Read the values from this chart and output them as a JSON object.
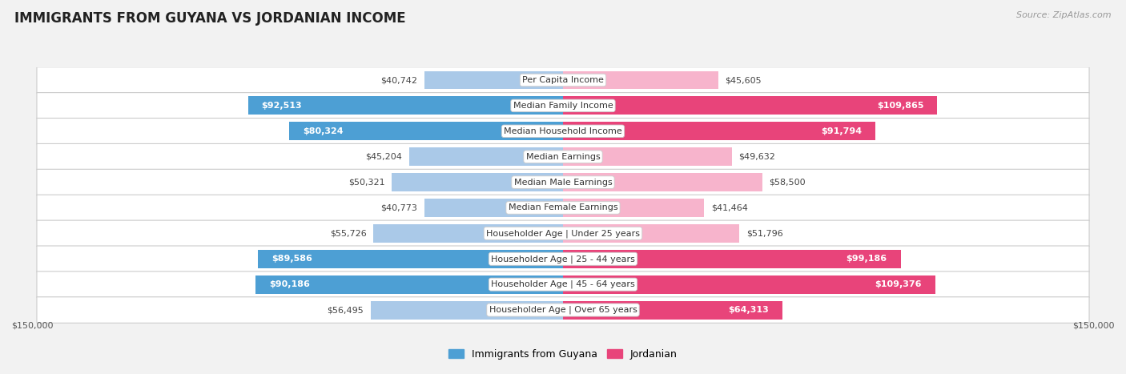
{
  "title": "IMMIGRANTS FROM GUYANA VS JORDANIAN INCOME",
  "source": "Source: ZipAtlas.com",
  "categories": [
    "Per Capita Income",
    "Median Family Income",
    "Median Household Income",
    "Median Earnings",
    "Median Male Earnings",
    "Median Female Earnings",
    "Householder Age | Under 25 years",
    "Householder Age | 25 - 44 years",
    "Householder Age | 45 - 64 years",
    "Householder Age | Over 65 years"
  ],
  "guyana_values": [
    40742,
    92513,
    80324,
    45204,
    50321,
    40773,
    55726,
    89586,
    90186,
    56495
  ],
  "jordanian_values": [
    45605,
    109865,
    91794,
    49632,
    58500,
    41464,
    51796,
    99186,
    109376,
    64313
  ],
  "guyana_labels": [
    "$40,742",
    "$92,513",
    "$80,324",
    "$45,204",
    "$50,321",
    "$40,773",
    "$55,726",
    "$89,586",
    "$90,186",
    "$56,495"
  ],
  "jordanian_labels": [
    "$45,605",
    "$109,865",
    "$91,794",
    "$49,632",
    "$58,500",
    "$41,464",
    "$51,796",
    "$99,186",
    "$109,376",
    "$64,313"
  ],
  "guyana_color_light": "#aac9e8",
  "guyana_color_dark": "#4d9fd4",
  "jordanian_color_light": "#f7b4cc",
  "jordanian_color_dark": "#e8447a",
  "axis_limit": 150000,
  "background_color": "#f2f2f2",
  "row_bg_color": "#ffffff",
  "title_fontsize": 12,
  "label_fontsize": 8,
  "value_fontsize": 8,
  "legend_fontsize": 9,
  "source_fontsize": 8,
  "inside_threshold": 60000
}
